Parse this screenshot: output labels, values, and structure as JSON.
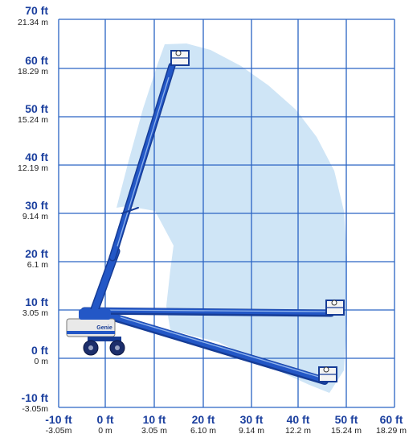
{
  "colors": {
    "grid": "#2a63c4",
    "ft_label": "#1b3f9e",
    "m_label": "#222222",
    "envelope": "#cfe5f6",
    "boom": "#2357c6",
    "boom_dark": "#163c96",
    "wheels": "#1c2e6b",
    "chassis": "#e9e9e9"
  },
  "axes": {
    "y": [
      {
        "ft": "70 ft",
        "m": "21.34 m"
      },
      {
        "ft": "60 ft",
        "m": "18.29 m"
      },
      {
        "ft": "50 ft",
        "m": "15.24 m"
      },
      {
        "ft": "40 ft",
        "m": "12.19 m"
      },
      {
        "ft": "30 ft",
        "m": "9.14 m"
      },
      {
        "ft": "20 ft",
        "m": "6.1 m"
      },
      {
        "ft": "10 ft",
        "m": "3.05 m"
      },
      {
        "ft": "0 ft",
        "m": "0 m"
      },
      {
        "ft": "-10 ft",
        "m": "-3.05m"
      }
    ],
    "x": [
      {
        "ft": "-10 ft",
        "m": "-3.05m"
      },
      {
        "ft": "0 ft",
        "m": "0 m"
      },
      {
        "ft": "10 ft",
        "m": "3.05 m"
      },
      {
        "ft": "20 ft",
        "m": "6.10 m"
      },
      {
        "ft": "30 ft",
        "m": "9.14 m"
      },
      {
        "ft": "40 ft",
        "m": "12.2 m"
      },
      {
        "ft": "50 ft",
        "m": "15.24 m"
      },
      {
        "ft": "60 ft",
        "m": "18.29 m"
      }
    ]
  },
  "machine": {
    "brand_mark": "Genie",
    "boom_positions": [
      {
        "name": "max-height",
        "tip_ft": [
          14.5,
          60
        ]
      },
      {
        "name": "max-outreach",
        "tip_ft": [
          50,
          9
        ]
      },
      {
        "name": "below-grade",
        "tip_ft": [
          47.5,
          -4
        ]
      }
    ]
  }
}
